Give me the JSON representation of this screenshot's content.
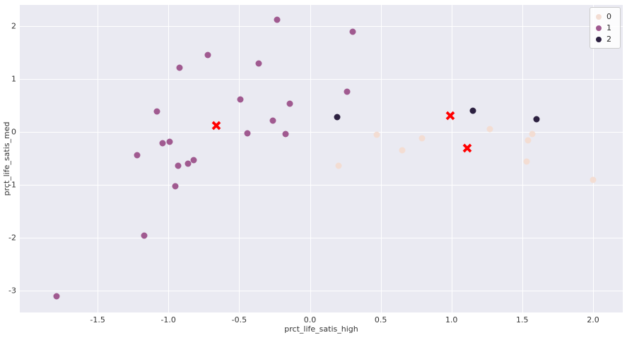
{
  "chart_data": {
    "type": "scatter",
    "title": "",
    "xlabel": "prct_life_satis_high",
    "ylabel": "prct_life_satis_med",
    "xlim": [
      -2.05,
      2.21
    ],
    "ylim": [
      -3.41,
      2.4
    ],
    "x_ticks": [
      -1.5,
      -1.0,
      -0.5,
      0.0,
      0.5,
      1.0,
      1.5,
      2.0
    ],
    "x_tick_labels": [
      "-1.5",
      "-1.0",
      "-0.5",
      "0.0",
      "0.5",
      "1.0",
      "1.5",
      "2.0"
    ],
    "y_ticks": [
      -3,
      -2,
      -1,
      0,
      1,
      2
    ],
    "y_tick_labels": [
      "-3",
      "-2",
      "-1",
      "0",
      "1",
      "2"
    ],
    "grid": true,
    "legend_position": "upper right",
    "series": [
      {
        "name": "0",
        "color": "#f3ddd3",
        "points": [
          [
            0.2,
            -0.64
          ],
          [
            0.47,
            -0.05
          ],
          [
            0.65,
            -0.35
          ],
          [
            0.79,
            -0.12
          ],
          [
            1.27,
            0.06
          ],
          [
            1.53,
            -0.56
          ],
          [
            1.54,
            -0.16
          ],
          [
            1.57,
            -0.04
          ],
          [
            2.0,
            -0.91
          ]
        ]
      },
      {
        "name": "1",
        "color": "#a05a90",
        "points": [
          [
            -1.79,
            -3.1
          ],
          [
            -1.17,
            -1.96
          ],
          [
            -1.22,
            -0.44
          ],
          [
            -1.08,
            0.39
          ],
          [
            -1.04,
            -0.21
          ],
          [
            -0.99,
            -0.19
          ],
          [
            -0.92,
            1.22
          ],
          [
            -0.95,
            -1.03
          ],
          [
            -0.93,
            -0.64
          ],
          [
            -0.86,
            -0.6
          ],
          [
            -0.82,
            -0.53
          ],
          [
            -0.72,
            1.45
          ],
          [
            -0.49,
            0.62
          ],
          [
            -0.44,
            -0.03
          ],
          [
            -0.36,
            1.3
          ],
          [
            -0.23,
            2.12
          ],
          [
            -0.26,
            0.21
          ],
          [
            -0.14,
            0.53
          ],
          [
            -0.17,
            -0.04
          ],
          [
            0.3,
            1.9
          ],
          [
            0.26,
            0.76
          ]
        ]
      },
      {
        "name": "2",
        "color": "#2c2040",
        "points": [
          [
            0.19,
            0.28
          ],
          [
            1.15,
            0.4
          ],
          [
            1.6,
            0.24
          ]
        ]
      }
    ],
    "centroids": {
      "marker": "X",
      "color": "#ff0000",
      "points": [
        [
          -0.66,
          0.12
        ],
        [
          0.99,
          0.31
        ],
        [
          1.11,
          -0.31
        ]
      ]
    }
  },
  "style": {
    "plot_bg": "#eaeaf2",
    "grid_color": "#ffffff",
    "text_color": "#333333"
  }
}
